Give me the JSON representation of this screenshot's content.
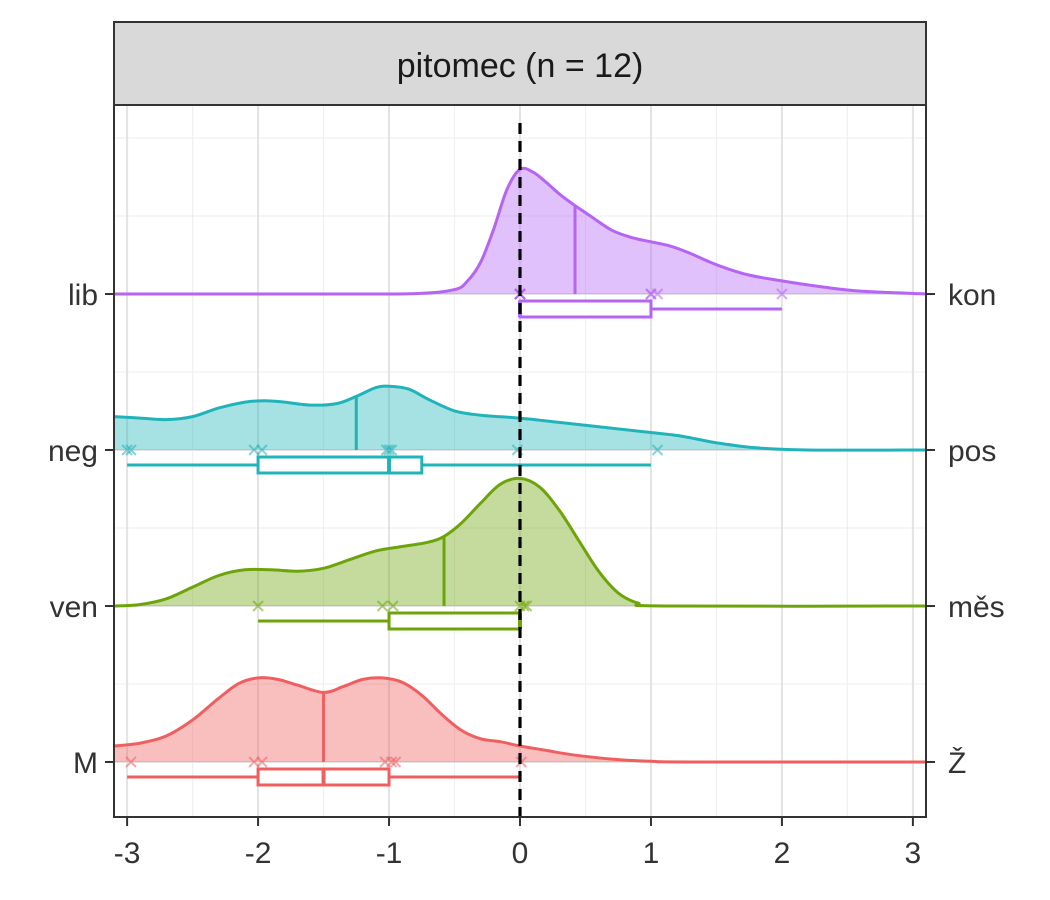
{
  "chart_data": {
    "type": "ridgeline-density-boxplot",
    "panel_title": "pitomec (n = 12)",
    "xlim": [
      -3.1,
      3.1
    ],
    "x_ticks": [
      -3,
      -2,
      -1,
      0,
      1,
      2,
      3
    ],
    "x_tick_labels": [
      "-3",
      "-2",
      "-1",
      "0",
      "1",
      "2",
      "3"
    ],
    "reference_line_x": 0,
    "grid": true,
    "rows": [
      {
        "left_label": "lib",
        "right_label": "kon",
        "color": "#B564F4",
        "mean": 0.42,
        "box": {
          "min": 0,
          "q1": 0,
          "median": 0,
          "q3": 1,
          "max": 2
        },
        "points": [
          0,
          0,
          0,
          0,
          0,
          0,
          1,
          1,
          1.05,
          2
        ],
        "density": [
          [
            -3.1,
            0
          ],
          [
            -1.5,
            0
          ],
          [
            -0.8,
            0.003
          ],
          [
            -0.5,
            0.03
          ],
          [
            -0.4,
            0.09
          ],
          [
            -0.3,
            0.22
          ],
          [
            -0.2,
            0.45
          ],
          [
            -0.1,
            0.72
          ],
          [
            0,
            0.86
          ],
          [
            0.1,
            0.84
          ],
          [
            0.2,
            0.77
          ],
          [
            0.3,
            0.69
          ],
          [
            0.42,
            0.61
          ],
          [
            0.55,
            0.53
          ],
          [
            0.7,
            0.44
          ],
          [
            0.85,
            0.39
          ],
          [
            1.0,
            0.36
          ],
          [
            1.15,
            0.33
          ],
          [
            1.3,
            0.28
          ],
          [
            1.45,
            0.22
          ],
          [
            1.6,
            0.17
          ],
          [
            1.75,
            0.13
          ],
          [
            2.0,
            0.09
          ],
          [
            2.3,
            0.05
          ],
          [
            2.6,
            0.02
          ],
          [
            3.1,
            0
          ]
        ]
      },
      {
        "left_label": "neg",
        "right_label": "pos",
        "color": "#21B3BA",
        "mean": -1.25,
        "box": {
          "min": -3,
          "q1": -2,
          "median": -1,
          "q3": -0.75,
          "max": 1
        },
        "points": [
          -3,
          -2.97,
          -2.03,
          -1.97,
          -1.02,
          -1,
          -0.98,
          -0.02,
          1.05
        ],
        "density": [
          [
            -3.1,
            0.23
          ],
          [
            -2.9,
            0.22
          ],
          [
            -2.7,
            0.21
          ],
          [
            -2.5,
            0.23
          ],
          [
            -2.3,
            0.29
          ],
          [
            -2.1,
            0.33
          ],
          [
            -1.95,
            0.34
          ],
          [
            -1.8,
            0.33
          ],
          [
            -1.6,
            0.31
          ],
          [
            -1.4,
            0.32
          ],
          [
            -1.25,
            0.37
          ],
          [
            -1.1,
            0.43
          ],
          [
            -1.0,
            0.44
          ],
          [
            -0.85,
            0.42
          ],
          [
            -0.7,
            0.35
          ],
          [
            -0.5,
            0.27
          ],
          [
            -0.3,
            0.24
          ],
          [
            0,
            0.22
          ],
          [
            0.3,
            0.19
          ],
          [
            0.6,
            0.16
          ],
          [
            0.9,
            0.13
          ],
          [
            1.2,
            0.1
          ],
          [
            1.5,
            0.05
          ],
          [
            1.8,
            0.015
          ],
          [
            2.2,
            0
          ],
          [
            3.1,
            0
          ]
        ]
      },
      {
        "left_label": "ven",
        "right_label": "měs",
        "color": "#6DA40A",
        "mean": -0.58,
        "box": {
          "min": -2,
          "q1": -1,
          "median": 0,
          "q3": 0,
          "max": 0
        },
        "points": [
          -2,
          -1.05,
          -0.97,
          0,
          0.03,
          0.05
        ],
        "density": [
          [
            -3.1,
            0
          ],
          [
            -2.9,
            0.01
          ],
          [
            -2.7,
            0.05
          ],
          [
            -2.5,
            0.13
          ],
          [
            -2.3,
            0.21
          ],
          [
            -2.1,
            0.25
          ],
          [
            -1.9,
            0.25
          ],
          [
            -1.7,
            0.24
          ],
          [
            -1.5,
            0.26
          ],
          [
            -1.3,
            0.32
          ],
          [
            -1.1,
            0.38
          ],
          [
            -0.9,
            0.41
          ],
          [
            -0.7,
            0.44
          ],
          [
            -0.58,
            0.48
          ],
          [
            -0.45,
            0.57
          ],
          [
            -0.3,
            0.71
          ],
          [
            -0.15,
            0.84
          ],
          [
            0,
            0.88
          ],
          [
            0.15,
            0.82
          ],
          [
            0.3,
            0.66
          ],
          [
            0.45,
            0.45
          ],
          [
            0.6,
            0.24
          ],
          [
            0.75,
            0.09
          ],
          [
            0.9,
            0.02
          ],
          [
            1.1,
            0
          ],
          [
            3.1,
            0
          ]
        ]
      },
      {
        "left_label": "M",
        "right_label": "Ž",
        "color": "#F05F5F",
        "mean": -1.5,
        "box": {
          "min": -3,
          "q1": -2,
          "median": -1.5,
          "q3": -1,
          "max": 0
        },
        "points": [
          -2.97,
          -2.03,
          -1.97,
          -1.03,
          -0.98,
          -0.95,
          0.01
        ],
        "density": [
          [
            -3.1,
            0.11
          ],
          [
            -2.9,
            0.13
          ],
          [
            -2.7,
            0.18
          ],
          [
            -2.5,
            0.29
          ],
          [
            -2.3,
            0.44
          ],
          [
            -2.15,
            0.54
          ],
          [
            -2.0,
            0.58
          ],
          [
            -1.85,
            0.57
          ],
          [
            -1.7,
            0.53
          ],
          [
            -1.5,
            0.48
          ],
          [
            -1.35,
            0.52
          ],
          [
            -1.2,
            0.57
          ],
          [
            -1.05,
            0.58
          ],
          [
            -0.9,
            0.55
          ],
          [
            -0.75,
            0.46
          ],
          [
            -0.6,
            0.33
          ],
          [
            -0.45,
            0.22
          ],
          [
            -0.3,
            0.16
          ],
          [
            -0.15,
            0.14
          ],
          [
            0,
            0.11
          ],
          [
            0.2,
            0.08
          ],
          [
            0.4,
            0.05
          ],
          [
            0.7,
            0.02
          ],
          [
            1.0,
            0.005
          ],
          [
            1.3,
            0
          ],
          [
            3.1,
            0
          ]
        ]
      }
    ]
  }
}
